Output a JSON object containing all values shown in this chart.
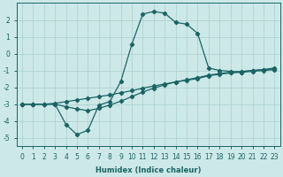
{
  "xlabel": "Humidex (Indice chaleur)",
  "background_color": "#cde8e8",
  "grid_color": "#aacfcf",
  "line_color": "#1a6464",
  "xlim": [
    -0.5,
    23.5
  ],
  "ylim": [
    -5.5,
    3.0
  ],
  "yticks": [
    -5,
    -4,
    -3,
    -2,
    -1,
    0,
    1,
    2
  ],
  "xtick_labels": [
    "0",
    "1",
    "2",
    "3",
    "4",
    "5",
    "6",
    "7",
    "8",
    "9",
    "10",
    "11",
    "12",
    "13",
    "14",
    "15",
    "16",
    "17",
    "18",
    "19",
    "20",
    "21",
    "22",
    "23"
  ],
  "line1_x": [
    0,
    1,
    2,
    3,
    4,
    5,
    6,
    7,
    8,
    9,
    10,
    11,
    12,
    13,
    14,
    15,
    16,
    17,
    18,
    19,
    20,
    21,
    22,
    23
  ],
  "line1_y": [
    -3.0,
    -3.0,
    -3.0,
    -3.0,
    -4.2,
    -4.8,
    -4.55,
    -3.05,
    -2.85,
    -1.65,
    0.55,
    2.35,
    2.5,
    2.4,
    1.85,
    1.75,
    1.2,
    -0.85,
    -1.0,
    -1.05,
    -1.1,
    -1.0,
    -0.95,
    -0.85
  ],
  "line2_x": [
    0,
    1,
    2,
    3,
    4,
    5,
    6,
    7,
    8,
    9,
    10,
    11,
    12,
    13,
    14,
    15,
    16,
    17,
    18,
    19,
    20,
    21,
    22,
    23
  ],
  "line2_y": [
    -3.0,
    -3.0,
    -3.0,
    -2.95,
    -2.85,
    -2.75,
    -2.65,
    -2.55,
    -2.45,
    -2.32,
    -2.2,
    -2.05,
    -1.92,
    -1.8,
    -1.68,
    -1.58,
    -1.48,
    -1.32,
    -1.22,
    -1.15,
    -1.1,
    -1.05,
    -1.0,
    -0.95
  ],
  "line3_x": [
    0,
    1,
    2,
    3,
    4,
    5,
    6,
    7,
    8,
    9,
    10,
    11,
    12,
    13,
    14,
    15,
    16,
    17,
    18,
    19,
    20,
    21,
    22,
    23
  ],
  "line3_y": [
    -3.0,
    -3.0,
    -3.0,
    -3.0,
    -3.15,
    -3.28,
    -3.38,
    -3.25,
    -3.05,
    -2.82,
    -2.55,
    -2.28,
    -2.05,
    -1.85,
    -1.68,
    -1.55,
    -1.42,
    -1.28,
    -1.18,
    -1.1,
    -1.05,
    -1.0,
    -0.95,
    -0.9
  ]
}
